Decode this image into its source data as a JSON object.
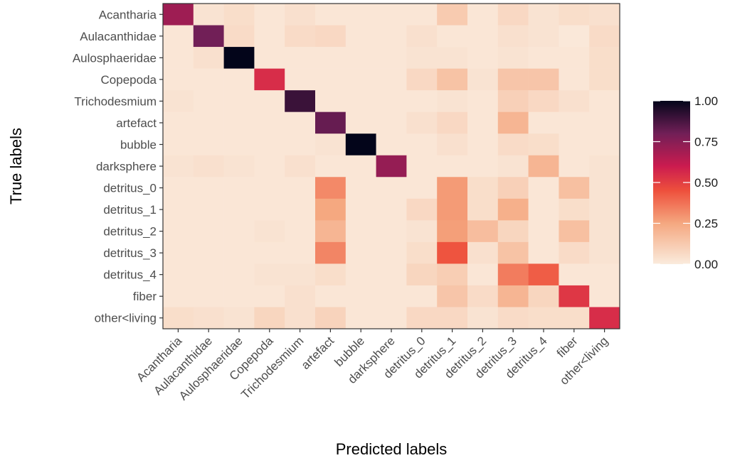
{
  "chart_data": {
    "type": "heatmap",
    "xlabel": "Predicted labels",
    "ylabel": "True labels",
    "x_categories": [
      "Acantharia",
      "Aulacanthidae",
      "Aulosphaeridae",
      "Copepoda",
      "Trichodesmium",
      "artefact",
      "bubble",
      "darksphere",
      "detritus_0",
      "detritus_1",
      "detritus_2",
      "detritus_3",
      "detritus_4",
      "fiber",
      "other<living"
    ],
    "y_categories": [
      "Acantharia",
      "Aulacanthidae",
      "Aulosphaeridae",
      "Copepoda",
      "Trichodesmium",
      "artefact",
      "bubble",
      "darksphere",
      "detritus_0",
      "detritus_1",
      "detritus_2",
      "detritus_3",
      "detritus_4",
      "fiber",
      "other<living"
    ],
    "values": [
      [
        0.7,
        0.03,
        0.05,
        0.02,
        0.04,
        0.02,
        0.02,
        0.02,
        0.02,
        0.12,
        0.02,
        0.07,
        0.03,
        0.05,
        0.04
      ],
      [
        0.02,
        0.8,
        0.06,
        0.02,
        0.06,
        0.07,
        0.02,
        0.02,
        0.04,
        0.02,
        0.02,
        0.04,
        0.03,
        0.01,
        0.06
      ],
      [
        0.02,
        0.04,
        1.0,
        0.02,
        0.02,
        0.02,
        0.02,
        0.02,
        0.03,
        0.03,
        0.02,
        0.03,
        0.02,
        0.02,
        0.05
      ],
      [
        0.02,
        0.02,
        0.02,
        0.55,
        0.02,
        0.02,
        0.02,
        0.02,
        0.07,
        0.15,
        0.03,
        0.14,
        0.14,
        0.02,
        0.05
      ],
      [
        0.03,
        0.02,
        0.02,
        0.02,
        0.9,
        0.02,
        0.02,
        0.02,
        0.02,
        0.03,
        0.02,
        0.1,
        0.07,
        0.04,
        0.02
      ],
      [
        0.02,
        0.02,
        0.02,
        0.02,
        0.02,
        0.82,
        0.02,
        0.02,
        0.04,
        0.07,
        0.02,
        0.2,
        0.02,
        0.02,
        0.02
      ],
      [
        0.02,
        0.02,
        0.02,
        0.02,
        0.02,
        0.03,
        1.0,
        0.02,
        0.02,
        0.04,
        0.02,
        0.06,
        0.05,
        0.02,
        0.02
      ],
      [
        0.03,
        0.04,
        0.03,
        0.02,
        0.04,
        0.02,
        0.02,
        0.72,
        0.02,
        0.02,
        0.02,
        0.03,
        0.2,
        0.02,
        0.03
      ],
      [
        0.02,
        0.02,
        0.02,
        0.02,
        0.02,
        0.32,
        0.02,
        0.02,
        0.02,
        0.28,
        0.05,
        0.1,
        0.02,
        0.16,
        0.03
      ],
      [
        0.02,
        0.02,
        0.02,
        0.02,
        0.02,
        0.25,
        0.02,
        0.02,
        0.07,
        0.28,
        0.05,
        0.22,
        0.02,
        0.05,
        0.03
      ],
      [
        0.02,
        0.02,
        0.02,
        0.03,
        0.02,
        0.2,
        0.02,
        0.02,
        0.03,
        0.27,
        0.17,
        0.08,
        0.02,
        0.16,
        0.03
      ],
      [
        0.02,
        0.02,
        0.02,
        0.02,
        0.02,
        0.33,
        0.02,
        0.02,
        0.05,
        0.44,
        0.04,
        0.15,
        0.02,
        0.06,
        0.03
      ],
      [
        0.02,
        0.02,
        0.02,
        0.03,
        0.03,
        0.05,
        0.02,
        0.02,
        0.08,
        0.11,
        0.02,
        0.35,
        0.42,
        0.02,
        0.02
      ],
      [
        0.02,
        0.02,
        0.02,
        0.02,
        0.04,
        0.02,
        0.02,
        0.02,
        0.02,
        0.14,
        0.06,
        0.2,
        0.08,
        0.52,
        0.02
      ],
      [
        0.05,
        0.04,
        0.03,
        0.08,
        0.04,
        0.09,
        0.02,
        0.02,
        0.07,
        0.07,
        0.03,
        0.06,
        0.05,
        0.05,
        0.55
      ]
    ],
    "color_scale": {
      "name": "rocket",
      "reversed": true,
      "range": [
        0,
        1
      ],
      "ticks": [
        1.0,
        0.75,
        0.5,
        0.25,
        0.0
      ],
      "tick_labels": [
        "1.00",
        "0.75",
        "0.50",
        "0.25",
        "0.00"
      ]
    },
    "grid": false,
    "legend_position": "right"
  }
}
